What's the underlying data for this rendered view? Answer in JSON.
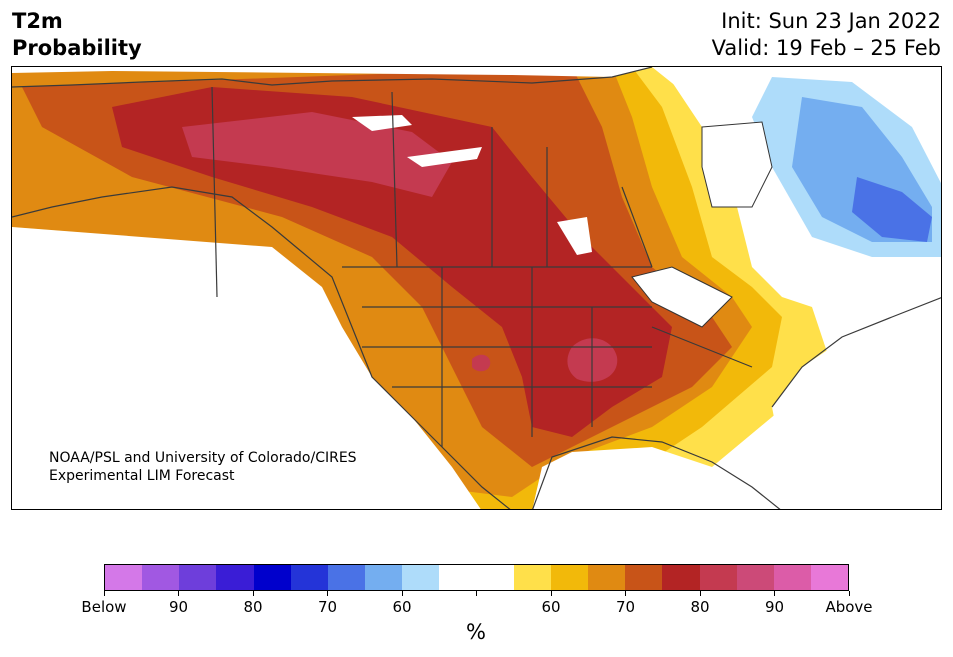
{
  "title": {
    "line1": "T2m",
    "line2": "Probability",
    "init": "Init: Sun 23 Jan 2022",
    "valid": "Valid: 19 Feb – 25 Feb"
  },
  "credit": {
    "line1": "NOAA/PSL and University of Colorado/CIRES",
    "line2": "Experimental LIM Forecast"
  },
  "colorbar": {
    "unit": "%",
    "colors": [
      "#d478e8",
      "#a158e2",
      "#6e3edb",
      "#3a1dd6",
      "#0000cc",
      "#2434d8",
      "#4a72e6",
      "#74aef0",
      "#aedcfa",
      "#ffffff",
      "#ffffff",
      "#ffe04a",
      "#f2b90a",
      "#e08a12",
      "#c85418",
      "#b32424",
      "#c43a50",
      "#cc4a78",
      "#dc5ca8",
      "#e878d8"
    ],
    "labels": [
      "Below",
      "90",
      "80",
      "70",
      "60",
      "",
      "60",
      "70",
      "80",
      "90",
      "Above"
    ]
  },
  "map_colors": {
    "warm_60": "#ffe04a",
    "warm_65": "#f2b90a",
    "warm_70": "#e08a12",
    "warm_75": "#c85418",
    "warm_80": "#b32424",
    "warm_85": "#c43a50",
    "cool_60": "#aedcfa",
    "cool_65": "#74aef0",
    "cool_70": "#4a72e6"
  }
}
